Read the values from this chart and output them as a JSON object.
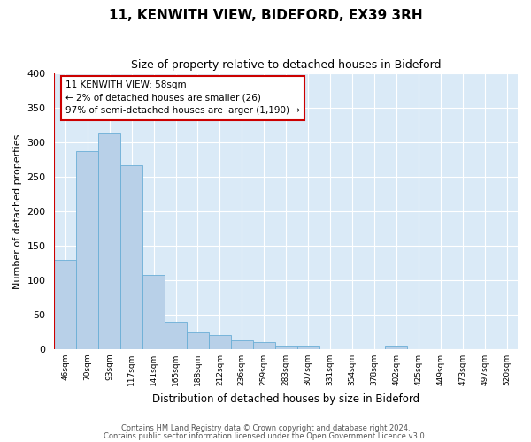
{
  "title": "11, KENWITH VIEW, BIDEFORD, EX39 3RH",
  "subtitle": "Size of property relative to detached houses in Bideford",
  "xlabel": "Distribution of detached houses by size in Bideford",
  "ylabel": "Number of detached properties",
  "bin_labels": [
    "46sqm",
    "70sqm",
    "93sqm",
    "117sqm",
    "141sqm",
    "165sqm",
    "188sqm",
    "212sqm",
    "236sqm",
    "259sqm",
    "283sqm",
    "307sqm",
    "331sqm",
    "354sqm",
    "378sqm",
    "402sqm",
    "425sqm",
    "449sqm",
    "473sqm",
    "497sqm",
    "520sqm"
  ],
  "bar_heights": [
    130,
    287,
    313,
    267,
    108,
    40,
    24,
    20,
    13,
    10,
    5,
    5,
    0,
    0,
    0,
    5,
    0,
    0,
    0,
    0,
    0
  ],
  "bar_color": "#b8d0e8",
  "bar_edge_color": "#6aaed6",
  "background_color": "#daeaf7",
  "grid_color": "#ffffff",
  "annotation_line1": "11 KENWITH VIEW: 58sqm",
  "annotation_line2": "← 2% of detached houses are smaller (26)",
  "annotation_line3": "97% of semi-detached houses are larger (1,190) →",
  "annotation_box_color": "#ffffff",
  "annotation_box_edge_color": "#cc0000",
  "vline_color": "#cc0000",
  "vline_x_bin": 0.5,
  "ylim": [
    0,
    400
  ],
  "yticks": [
    0,
    50,
    100,
    150,
    200,
    250,
    300,
    350,
    400
  ],
  "footer_line1": "Contains HM Land Registry data © Crown copyright and database right 2024.",
  "footer_line2": "Contains public sector information licensed under the Open Government Licence v3.0."
}
